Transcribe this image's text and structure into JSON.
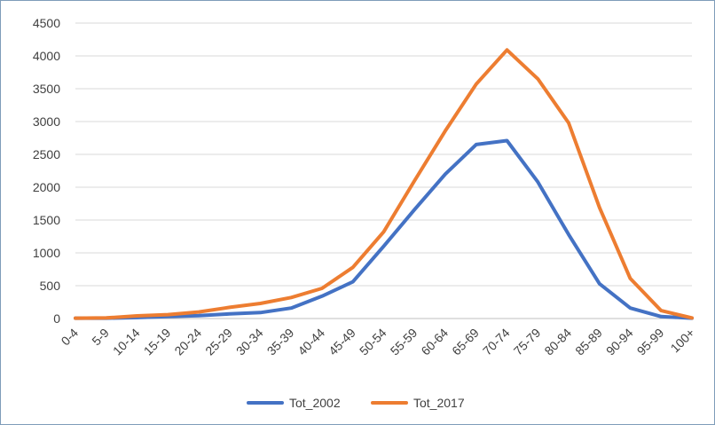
{
  "chart_data": {
    "type": "line",
    "title": "",
    "xlabel": "",
    "ylabel": "",
    "categories": [
      "0-4",
      "5-9",
      "10-14",
      "15-19",
      "20-24",
      "25-29",
      "30-34",
      "35-39",
      "40-44",
      "45-49",
      "50-54",
      "55-59",
      "60-64",
      "65-69",
      "70-74",
      "75-79",
      "80-84",
      "85-89",
      "90-94",
      "95-99",
      "100+"
    ],
    "series": [
      {
        "name": "Tot_2002",
        "color": "#4472c4",
        "values": [
          5,
          5,
          15,
          30,
          45,
          70,
          90,
          160,
          340,
          560,
          1100,
          1660,
          2200,
          2650,
          2710,
          2080,
          1280,
          530,
          160,
          30,
          5
        ]
      },
      {
        "name": "Tot_2017",
        "color": "#ed7d31",
        "values": [
          5,
          10,
          40,
          60,
          100,
          170,
          230,
          320,
          460,
          780,
          1320,
          2100,
          2860,
          3570,
          4090,
          3650,
          2980,
          1690,
          610,
          120,
          10
        ]
      }
    ],
    "ylim": [
      0,
      4500
    ],
    "yticks": [
      0,
      500,
      1000,
      1500,
      2000,
      2500,
      3000,
      3500,
      4000,
      4500
    ],
    "grid": true,
    "legend": "bottom"
  }
}
